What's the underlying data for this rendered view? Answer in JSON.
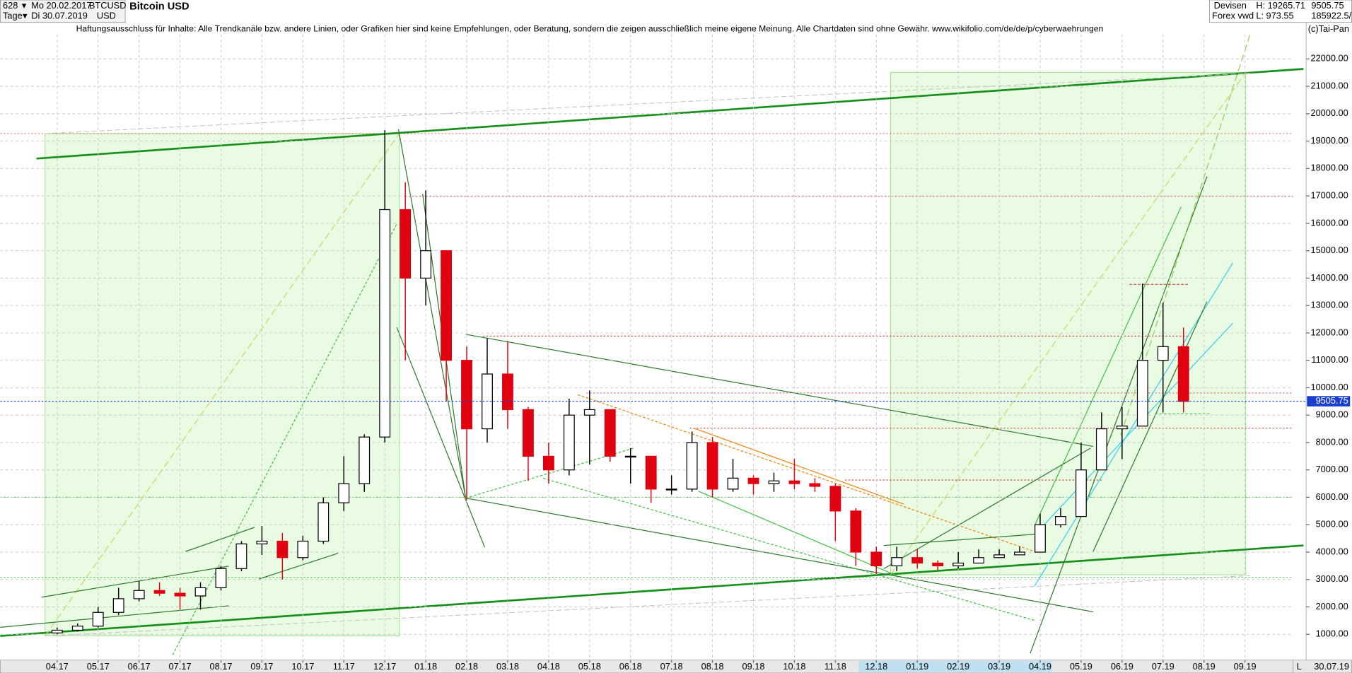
{
  "header": {
    "count": "628",
    "start": "Mo 20.02.2017",
    "period": "Tage",
    "end": "Di 30.07.2019",
    "symbol": "BTCUSD",
    "currency": "USD",
    "market": "Devisen",
    "source": "Forex vwd",
    "high": "H: 19265.71",
    "low": "L: 973.55",
    "volume": "185922.5/",
    "copyright": "(c)Tai-Pan",
    "date": "30.07.19",
    "scale_mode": "L"
  },
  "chart_data": {
    "type": "candlestick",
    "title": "Bitcoin USD",
    "subtitle": "Haftungsausschluss für Inhalte: Alle Trendkanäle bzw. andere Linien, oder Grafiken hier sind keine Empfehlungen, oder Beratung, sondern die zeigen ausschließlich meine eigene Meinung. Alle Chartdaten sind ohne Gewähr.  www.wikifolio.com/de/de/p/cyberwaehrungen",
    "categories": [
      "04.17",
      null,
      "05.17",
      null,
      "06.17",
      null,
      "07.17",
      null,
      "08.17",
      null,
      "09.17",
      null,
      "10.17",
      null,
      "11.17",
      null,
      "12.17",
      null,
      "01.18",
      null,
      "02.18",
      null,
      "03.18",
      null,
      "04.18",
      null,
      "05.18",
      null,
      "06.18",
      null,
      "07.18",
      null,
      "08.18",
      null,
      "09.18",
      null,
      "10.18",
      null,
      "11.18",
      null,
      "12.18",
      null,
      "01.19",
      null,
      "02.19",
      null,
      "03.19",
      null,
      "04.19",
      null,
      "05.19",
      null,
      "06.19",
      null,
      "07.19",
      null,
      "08.19",
      null,
      "09.19",
      null
    ],
    "open": [
      1050,
      1150,
      1300,
      1800,
      2300,
      2600,
      2500,
      2400,
      2700,
      3400,
      4300,
      4400,
      3800,
      4400,
      5800,
      6500,
      8200,
      16500,
      14000,
      15000,
      11000,
      8500,
      10500,
      9200,
      7500,
      7000,
      9000,
      9200,
      7500,
      7500,
      6300,
      6300,
      8000,
      6300,
      6700,
      6500,
      6600,
      6500,
      6400,
      5500,
      4000,
      3500,
      3800,
      3600,
      3500,
      3600,
      3800,
      3900,
      4000,
      5000,
      5300,
      7000,
      8500,
      8600,
      11000,
      11500,
      null,
      null,
      null,
      null
    ],
    "high": [
      1250,
      1400,
      2000,
      2700,
      2950,
      2900,
      2700,
      2900,
      3500,
      4400,
      4950,
      4700,
      4600,
      6000,
      7500,
      8300,
      19400,
      17500,
      17200,
      15000,
      11500,
      11800,
      11700,
      9300,
      8000,
      9600,
      9900,
      9200,
      7800,
      7500,
      6800,
      8400,
      8200,
      7400,
      6800,
      6900,
      7400,
      6700,
      6500,
      5600,
      4200,
      4200,
      4100,
      3700,
      4000,
      4100,
      4100,
      4200,
      5400,
      5600,
      8000,
      9100,
      9300,
      13800,
      13100,
      12200,
      null,
      null,
      null,
      null
    ],
    "low": [
      1000,
      1100,
      1250,
      1700,
      2200,
      2400,
      1900,
      1900,
      2600,
      3300,
      3900,
      3000,
      3700,
      4300,
      5500,
      6200,
      8000,
      11000,
      13000,
      9500,
      5900,
      8000,
      8500,
      6600,
      6500,
      6800,
      7200,
      7300,
      6500,
      5800,
      6100,
      6200,
      6000,
      6200,
      6100,
      6200,
      6300,
      6200,
      4400,
      3500,
      3200,
      3300,
      3400,
      3350,
      3400,
      3700,
      3800,
      3900,
      4000,
      4900,
      5300,
      7000,
      7400,
      8700,
      9100,
      9100,
      null,
      null,
      null,
      null
    ],
    "close": [
      1150,
      1300,
      1800,
      2300,
      2600,
      2500,
      2400,
      2700,
      3400,
      4300,
      4400,
      3800,
      4400,
      5800,
      6500,
      8200,
      16500,
      14000,
      15000,
      11000,
      8500,
      10500,
      9200,
      7500,
      7000,
      9000,
      9200,
      7500,
      7500,
      6300,
      6300,
      8000,
      6300,
      6700,
      6500,
      6600,
      6500,
      6400,
      5500,
      4000,
      3500,
      3800,
      3600,
      3500,
      3600,
      3800,
      3900,
      4000,
      5000,
      5300,
      7000,
      8500,
      8600,
      11000,
      11500,
      9500,
      null,
      null,
      null,
      null
    ],
    "up_color": "#000000",
    "down_color": "#e0000f",
    "last_price": 9505.75,
    "last_color": "#1a3fd0",
    "ylim": [
      60,
      24150
    ],
    "yticks": [
      {
        "value": 1000,
        "label": "1000.00"
      },
      {
        "value": 2000,
        "label": "2000.00"
      },
      {
        "value": 3000,
        "label": "3000.00"
      },
      {
        "value": 4000,
        "label": "4000.00"
      },
      {
        "value": 5000,
        "label": "5000.00"
      },
      {
        "value": 6000,
        "label": "6000.00"
      },
      {
        "value": 7000,
        "label": "7000.00"
      },
      {
        "value": 8000,
        "label": "8000.00"
      },
      {
        "value": 9000,
        "label": "9000.00"
      },
      {
        "value": 10000,
        "label": "10000.00"
      },
      {
        "value": 11000,
        "label": "11000.00"
      },
      {
        "value": 12000,
        "label": "12000.00"
      },
      {
        "value": 13000,
        "label": "13000.00"
      },
      {
        "value": 14000,
        "label": "14000.00"
      },
      {
        "value": 15000,
        "label": "15000.00"
      },
      {
        "value": 16000,
        "label": "16000.00"
      },
      {
        "value": 17000,
        "label": "17000.00"
      },
      {
        "value": 18000,
        "label": "18000.00"
      },
      {
        "value": 19000,
        "label": "19000.00"
      },
      {
        "value": 20000,
        "label": "20000.00"
      },
      {
        "value": 21000,
        "label": "21000.00"
      },
      {
        "value": 22000,
        "label": "22000.00"
      }
    ],
    "grid": true
  }
}
